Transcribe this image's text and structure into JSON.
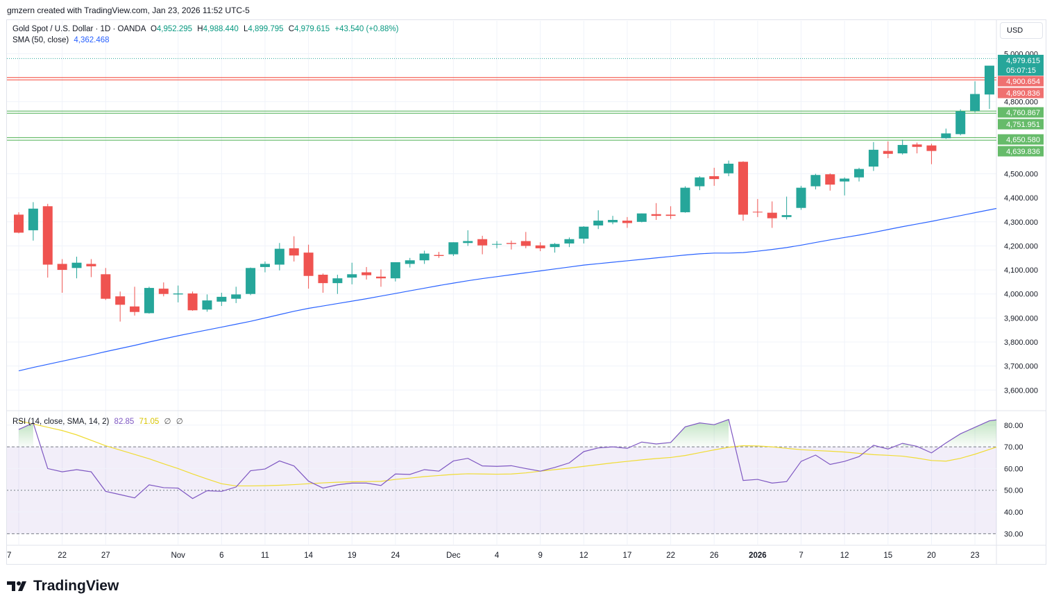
{
  "header": {
    "text": "gmzern created with TradingView.com, Jan 23, 2026 11:52 UTC-5"
  },
  "legend": {
    "symbol": "Gold Spot / U.S. Dollar · 1D · OANDA",
    "o_label": "O",
    "o_val": "4,952.295",
    "h_label": "H",
    "h_val": "4,988.440",
    "l_label": "L",
    "l_val": "4,899.795",
    "c_label": "C",
    "c_val": "4,979.615",
    "change": "+43.540 (+0.88%)",
    "sma_label": "SMA (50, close)",
    "sma_val": "4,362.468",
    "rsi_label": "RSI (14, close, SMA, 14, 2)",
    "rsi_val": "82.85",
    "rsi_sma_val": "71.05",
    "rsi_na1": "∅",
    "rsi_na2": "∅"
  },
  "currency": "USD",
  "footer": {
    "brand": "TradingView"
  },
  "colors": {
    "up": "#26a69a",
    "down": "#ef5350",
    "sma": "#2962ff",
    "rsi": "#7e57c2",
    "rsi_sma": "#f0dc33",
    "support": "#4caf50",
    "resistance": "#f44336"
  },
  "chart_data": [
    {
      "type": "candlestick",
      "title": "Gold Spot / U.S. Dollar · 1D · OANDA",
      "ylim": [
        3520,
        5050
      ],
      "y_ticks": [
        "3,600.000",
        "3,700.000",
        "3,800.000",
        "3,900.000",
        "4,000.000",
        "4,100.000",
        "4,200.000",
        "4,300.000",
        "4,400.000",
        "4,500.000",
        "4,800.000",
        "5,000.000"
      ],
      "x_ticks": [
        "7",
        "22",
        "27",
        "Nov",
        "6",
        "11",
        "14",
        "19",
        "24",
        "Dec",
        "4",
        "9",
        "12",
        "17",
        "22",
        "26",
        "2026",
        "7",
        "12",
        "15",
        "20",
        "23"
      ],
      "x_tick_index": [
        0,
        3,
        6,
        11,
        14,
        17,
        20,
        23,
        26,
        30,
        33,
        36,
        39,
        42,
        45,
        48,
        51,
        54,
        57,
        60,
        63,
        66
      ],
      "candles": [
        {
          "o": 4330,
          "h": 4340,
          "l": 4252,
          "c": 4255
        },
        {
          "o": 4265,
          "h": 4382,
          "l": 4222,
          "c": 4355
        },
        {
          "o": 4365,
          "h": 4375,
          "l": 4068,
          "c": 4122
        },
        {
          "o": 4125,
          "h": 4145,
          "l": 4005,
          "c": 4100
        },
        {
          "o": 4108,
          "h": 4155,
          "l": 4065,
          "c": 4130
        },
        {
          "o": 4125,
          "h": 4145,
          "l": 4070,
          "c": 4115
        },
        {
          "o": 4082,
          "h": 4108,
          "l": 3975,
          "c": 3980
        },
        {
          "o": 3990,
          "h": 4010,
          "l": 3885,
          "c": 3955
        },
        {
          "o": 3948,
          "h": 4030,
          "l": 3910,
          "c": 3925
        },
        {
          "o": 3920,
          "h": 4030,
          "l": 3918,
          "c": 4025
        },
        {
          "o": 4022,
          "h": 4048,
          "l": 3990,
          "c": 4000
        },
        {
          "o": 3998,
          "h": 4035,
          "l": 3965,
          "c": 4002
        },
        {
          "o": 4002,
          "h": 4010,
          "l": 3930,
          "c": 3932
        },
        {
          "o": 3935,
          "h": 3998,
          "l": 3926,
          "c": 3973
        },
        {
          "o": 3968,
          "h": 4005,
          "l": 3950,
          "c": 3988
        },
        {
          "o": 3980,
          "h": 4030,
          "l": 3962,
          "c": 3998
        },
        {
          "o": 4000,
          "h": 4110,
          "l": 3995,
          "c": 4108
        },
        {
          "o": 4112,
          "h": 4135,
          "l": 4090,
          "c": 4125
        },
        {
          "o": 4122,
          "h": 4212,
          "l": 4098,
          "c": 4188
        },
        {
          "o": 4190,
          "h": 4240,
          "l": 4135,
          "c": 4160
        },
        {
          "o": 4172,
          "h": 4205,
          "l": 4022,
          "c": 4075
        },
        {
          "o": 4080,
          "h": 4085,
          "l": 4005,
          "c": 4045
        },
        {
          "o": 4045,
          "h": 4080,
          "l": 4000,
          "c": 4065
        },
        {
          "o": 4068,
          "h": 4130,
          "l": 4040,
          "c": 4082
        },
        {
          "o": 4090,
          "h": 4112,
          "l": 4060,
          "c": 4078
        },
        {
          "o": 4072,
          "h": 4102,
          "l": 4030,
          "c": 4065
        },
        {
          "o": 4065,
          "h": 4132,
          "l": 4052,
          "c": 4132
        },
        {
          "o": 4125,
          "h": 4150,
          "l": 4110,
          "c": 4140
        },
        {
          "o": 4140,
          "h": 4180,
          "l": 4125,
          "c": 4168
        },
        {
          "o": 4162,
          "h": 4175,
          "l": 4150,
          "c": 4158
        },
        {
          "o": 4165,
          "h": 4215,
          "l": 4158,
          "c": 4215
        },
        {
          "o": 4212,
          "h": 4265,
          "l": 4200,
          "c": 4220
        },
        {
          "o": 4228,
          "h": 4242,
          "l": 4165,
          "c": 4202
        },
        {
          "o": 4205,
          "h": 4220,
          "l": 4190,
          "c": 4208
        },
        {
          "o": 4212,
          "h": 4222,
          "l": 4185,
          "c": 4208
        },
        {
          "o": 4220,
          "h": 4258,
          "l": 4190,
          "c": 4200
        },
        {
          "o": 4202,
          "h": 4215,
          "l": 4178,
          "c": 4190
        },
        {
          "o": 4195,
          "h": 4212,
          "l": 4172,
          "c": 4208
        },
        {
          "o": 4210,
          "h": 4235,
          "l": 4195,
          "c": 4228
        },
        {
          "o": 4230,
          "h": 4282,
          "l": 4210,
          "c": 4280
        },
        {
          "o": 4285,
          "h": 4348,
          "l": 4270,
          "c": 4305
        },
        {
          "o": 4298,
          "h": 4325,
          "l": 4290,
          "c": 4308
        },
        {
          "o": 4305,
          "h": 4320,
          "l": 4275,
          "c": 4295
        },
        {
          "o": 4300,
          "h": 4335,
          "l": 4298,
          "c": 4335
        },
        {
          "o": 4332,
          "h": 4378,
          "l": 4308,
          "c": 4325
        },
        {
          "o": 4330,
          "h": 4365,
          "l": 4312,
          "c": 4325
        },
        {
          "o": 4340,
          "h": 4448,
          "l": 4338,
          "c": 4442
        },
        {
          "o": 4448,
          "h": 4490,
          "l": 4432,
          "c": 4485
        },
        {
          "o": 4490,
          "h": 4525,
          "l": 4450,
          "c": 4478
        },
        {
          "o": 4502,
          "h": 4555,
          "l": 4490,
          "c": 4542
        },
        {
          "o": 4550,
          "h": 4552,
          "l": 4305,
          "c": 4330
        },
        {
          "o": 4342,
          "h": 4395,
          "l": 4320,
          "c": 4340
        },
        {
          "o": 4338,
          "h": 4385,
          "l": 4275,
          "c": 4315
        },
        {
          "o": 4320,
          "h": 4405,
          "l": 4310,
          "c": 4328
        },
        {
          "o": 4358,
          "h": 4450,
          "l": 4350,
          "c": 4442
        },
        {
          "o": 4448,
          "h": 4500,
          "l": 4435,
          "c": 4495
        },
        {
          "o": 4498,
          "h": 4502,
          "l": 4430,
          "c": 4455
        },
        {
          "o": 4468,
          "h": 4485,
          "l": 4410,
          "c": 4480
        },
        {
          "o": 4485,
          "h": 4525,
          "l": 4468,
          "c": 4520
        },
        {
          "o": 4530,
          "h": 4632,
          "l": 4512,
          "c": 4600
        },
        {
          "o": 4595,
          "h": 4635,
          "l": 4565,
          "c": 4583
        },
        {
          "o": 4585,
          "h": 4642,
          "l": 4580,
          "c": 4620
        },
        {
          "o": 4622,
          "h": 4630,
          "l": 4585,
          "c": 4612
        },
        {
          "o": 4618,
          "h": 4625,
          "l": 4540,
          "c": 4595
        },
        {
          "o": 4648,
          "h": 4688,
          "l": 4645,
          "c": 4668
        },
        {
          "o": 4665,
          "h": 4768,
          "l": 4660,
          "c": 4760
        },
        {
          "o": 4762,
          "h": 4885,
          "l": 4755,
          "c": 4832
        },
        {
          "o": 4830,
          "h": 4945,
          "l": 4770,
          "c": 4950
        },
        {
          "o": 4952,
          "h": 4988,
          "l": 4900,
          "c": 4980
        }
      ],
      "sma50": [
        3680,
        3694,
        3707,
        3720,
        3733,
        3746,
        3760,
        3773,
        3786,
        3800,
        3813,
        3826,
        3838,
        3850,
        3862,
        3874,
        3886,
        3900,
        3914,
        3928,
        3940,
        3950,
        3960,
        3970,
        3980,
        3991,
        4002,
        4013,
        4024,
        4035,
        4045,
        4055,
        4064,
        4072,
        4080,
        4088,
        4096,
        4104,
        4112,
        4120,
        4126,
        4132,
        4138,
        4144,
        4150,
        4156,
        4162,
        4167,
        4170,
        4170,
        4172,
        4178,
        4185,
        4193,
        4203,
        4214,
        4225,
        4235,
        4245,
        4256,
        4268,
        4280,
        4291,
        4302,
        4314,
        4326,
        4338,
        4350,
        4362
      ],
      "levels": [
        {
          "value": 4900.654,
          "label": "4,900.654",
          "kind": "resistance"
        },
        {
          "value": 4890.836,
          "label": "4,890.836",
          "kind": "resistance"
        },
        {
          "value": 4760.867,
          "label": "4,760.867",
          "kind": "support"
        },
        {
          "value": 4751.951,
          "label": "4,751.951",
          "kind": "support"
        },
        {
          "value": 4650.58,
          "label": "4,650.580",
          "kind": "support"
        },
        {
          "value": 4639.836,
          "label": "4,639.836",
          "kind": "support"
        }
      ],
      "last_price": {
        "value": 4979.615,
        "label": "4,979.615",
        "countdown": "05:07:15"
      }
    },
    {
      "type": "line",
      "title": "RSI (14, close, SMA, 14, 2)",
      "ylim": [
        25,
        86
      ],
      "y_ticks": [
        "30.00",
        "40.00",
        "50.00",
        "60.00",
        "70.00",
        "80.00"
      ],
      "bands": [
        30,
        50,
        70
      ],
      "series": [
        {
          "name": "RSI",
          "values": [
            78,
            81,
            60,
            58.5,
            59.5,
            58.5,
            49.5,
            48,
            46.5,
            52.5,
            51.2,
            51,
            46.2,
            49.8,
            49.5,
            51.5,
            59,
            59.8,
            63.5,
            61.2,
            54.2,
            51,
            52.5,
            53.3,
            53.3,
            52.2,
            57.5,
            57.3,
            59.5,
            58.8,
            63.5,
            64.7,
            61.2,
            61,
            61.3,
            60,
            58.8,
            60.5,
            62.6,
            67.8,
            69.5,
            70,
            69.3,
            72.2,
            71.3,
            72,
            79.2,
            81,
            80.2,
            82.6,
            54.5,
            55,
            53.3,
            54,
            63.3,
            66.2,
            61.9,
            63.3,
            65.5,
            70.7,
            69,
            71.6,
            70.2,
            67.2,
            71.8,
            76,
            79,
            82,
            82.85
          ]
        },
        {
          "name": "RSI-based MA",
          "values": [
            82,
            80.5,
            79,
            77.5,
            75.5,
            73,
            70.5,
            68.5,
            66.5,
            64.5,
            62.2,
            60,
            57.5,
            55.2,
            53,
            52,
            52,
            52.1,
            52.3,
            52.6,
            53,
            53.4,
            53.7,
            53.9,
            54,
            54.1,
            55,
            55.6,
            56.3,
            56.8,
            57.3,
            57.6,
            57.5,
            57.4,
            57.5,
            58,
            58.8,
            59.5,
            60.2,
            61,
            61.8,
            62.6,
            63.3,
            64,
            64.6,
            65.1,
            66,
            67.3,
            68.6,
            69.8,
            70.5,
            70.4,
            70,
            69.3,
            68.7,
            68.3,
            68,
            67.6,
            67,
            66.4,
            66.1,
            65.7,
            64.8,
            63.7,
            63.4,
            64.7,
            66.6,
            68.8,
            71.05
          ]
        }
      ]
    }
  ]
}
